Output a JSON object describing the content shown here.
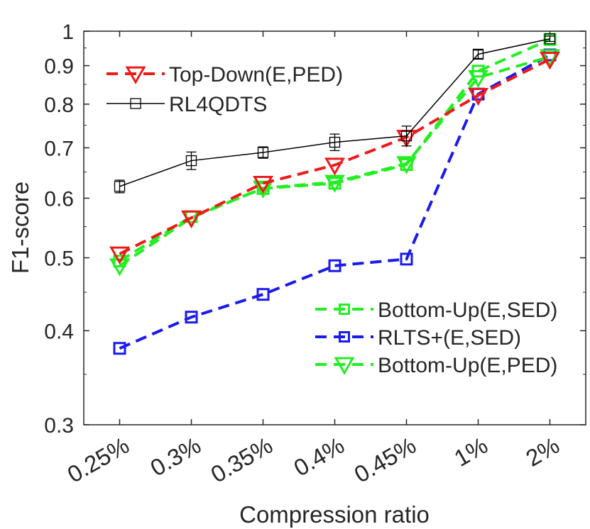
{
  "chart_data": {
    "type": "line",
    "title": "",
    "xlabel": "Compression ratio",
    "ylabel": "F1-score",
    "categories": [
      "0.25%",
      "0.3%",
      "0.35%",
      "0.4%",
      "0.45%",
      "1%",
      "2%"
    ],
    "yscale": "log",
    "ylim": [
      0.3,
      1.0
    ],
    "yticks": [
      {
        "value": 0.3,
        "label": "0.3"
      },
      {
        "value": 0.4,
        "label": "0.4"
      },
      {
        "value": 0.5,
        "label": "0.5"
      },
      {
        "value": 0.6,
        "label": "0.6"
      },
      {
        "value": 0.7,
        "label": "0.7"
      },
      {
        "value": 0.8,
        "label": "0.8"
      },
      {
        "value": 0.9,
        "label": "0.9"
      },
      {
        "value": 1.0,
        "label": "1"
      }
    ],
    "series": [
      {
        "name": "Bottom-Up(E,SED)",
        "color": "#22ee22",
        "dash": "dashed",
        "marker": "square",
        "values": [
          0.495,
          0.567,
          0.618,
          0.628,
          0.665,
          0.885,
          0.975
        ]
      },
      {
        "name": "RLTS+(E,SED)",
        "color": "#1a1aee",
        "dash": "dashed",
        "marker": "square",
        "values": [
          0.379,
          0.417,
          0.447,
          0.488,
          0.498,
          0.825,
          0.93
        ]
      },
      {
        "name": "Bottom-Up(E,PED)",
        "color": "#22ee22",
        "dash": "dashed",
        "marker": "triangle-down",
        "values": [
          0.488,
          0.565,
          0.619,
          0.63,
          0.667,
          0.868,
          0.925
        ]
      },
      {
        "name": "Top-Down(E,PED)",
        "color": "#ee1a1a",
        "dash": "dashed",
        "marker": "triangle-down",
        "values": [
          0.506,
          0.565,
          0.628,
          0.664,
          0.723,
          0.822,
          0.918
        ]
      },
      {
        "name": "RL4QDTS",
        "color": "#000000",
        "dash": "solid",
        "marker": "square",
        "values": [
          0.622,
          0.673,
          0.69,
          0.712,
          0.726,
          0.932,
          0.977
        ],
        "errors": [
          0.012,
          0.018,
          0.012,
          0.018,
          0.022,
          0.012,
          0.008
        ]
      }
    ],
    "legend": [
      {
        "position": "top-left",
        "entries": [
          "Top-Down(E,PED)",
          "RL4QDTS"
        ]
      },
      {
        "position": "bottom-right",
        "entries": [
          "Bottom-Up(E,SED)",
          "RLTS+(E,SED)",
          "Bottom-Up(E,PED)"
        ]
      }
    ]
  }
}
